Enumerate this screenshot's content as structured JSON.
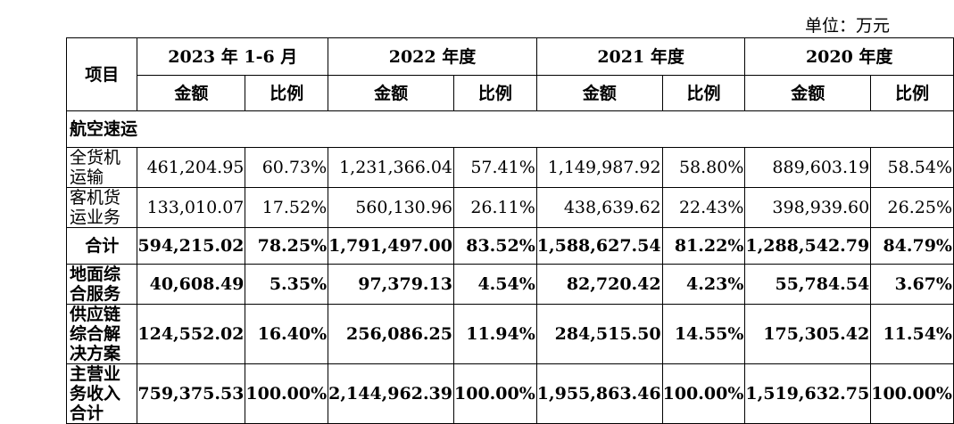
{
  "unit": "单位：万元",
  "header": {
    "item": "项目",
    "periods": [
      "2023 年 1-6 月",
      "2022 年度",
      "2021 年度",
      "2020 年度"
    ],
    "amount": "金额",
    "ratio": "比例"
  },
  "section": "航空速运",
  "rows": [
    {
      "label": "全货机运输",
      "vals": [
        "461,204.95",
        "60.73%",
        "1,231,366.04",
        "57.41%",
        "1,149,987.92",
        "58.80%",
        "889,603.19",
        "58.54%"
      ]
    },
    {
      "label": "客机货运业务",
      "vals": [
        "133,010.07",
        "17.52%",
        "560,130.96",
        "26.11%",
        "438,639.62",
        "22.43%",
        "398,939.60",
        "26.25%"
      ]
    },
    {
      "label": "合计",
      "vals": [
        "594,215.02",
        "78.25%",
        "1,791,497.00",
        "83.52%",
        "1,588,627.54",
        "81.22%",
        "1,288,542.79",
        "84.79%"
      ]
    },
    {
      "label": "地面综合服务",
      "vals": [
        "40,608.49",
        "5.35%",
        "97,379.13",
        "4.54%",
        "82,720.42",
        "4.23%",
        "55,784.54",
        "3.67%"
      ]
    },
    {
      "label": "供应链综合解决方案",
      "vals": [
        "124,552.02",
        "16.40%",
        "256,086.25",
        "11.94%",
        "284,515.50",
        "14.55%",
        "175,305.42",
        "11.54%"
      ]
    },
    {
      "label": "主营业务收入合计",
      "vals": [
        "759,375.53",
        "100.00%",
        "2,144,962.39",
        "100.00%",
        "1,955,863.46",
        "100.00%",
        "1,519,632.75",
        "100.00%"
      ]
    }
  ]
}
